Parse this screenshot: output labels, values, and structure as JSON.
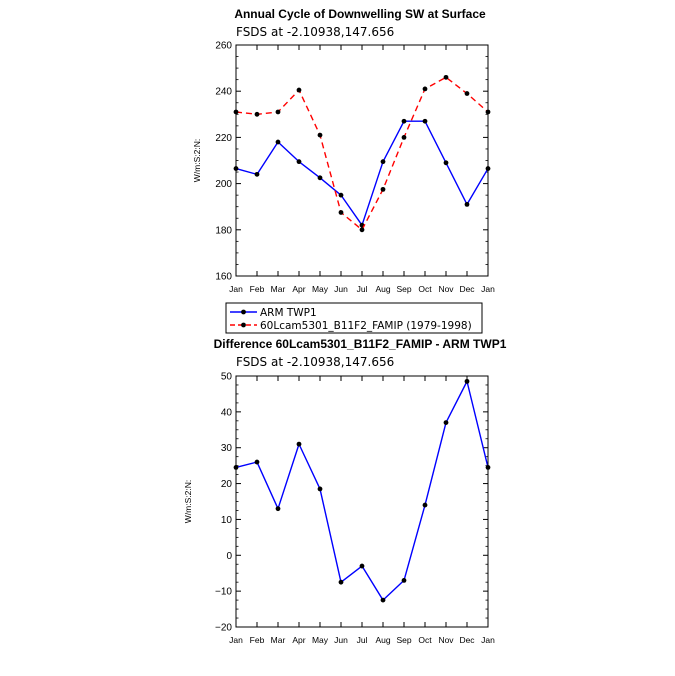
{
  "chart_data": [
    {
      "type": "line",
      "title": "Annual Cycle of Downwelling SW at Surface",
      "subtitle": "FSDS at -2.10938,147.656",
      "ylabel": "W/m:S:2:N:",
      "ylim": [
        160,
        260
      ],
      "yticks": [
        160,
        180,
        200,
        220,
        240,
        260
      ],
      "categories": [
        "Jan",
        "Feb",
        "Mar",
        "Apr",
        "May",
        "Jun",
        "Jul",
        "Aug",
        "Sep",
        "Oct",
        "Nov",
        "Dec",
        "Jan"
      ],
      "series": [
        {
          "name": "ARM TWP1",
          "color": "#0000ff",
          "dash": "",
          "values": [
            206.5,
            204,
            218,
            209.5,
            202.5,
            195,
            182,
            209.5,
            227,
            227,
            209,
            191,
            206.5
          ]
        },
        {
          "name": "60Lcam5301_B11F2_FAMIP (1979-1998)",
          "color": "#ff0000",
          "dash": "6,4",
          "values": [
            231,
            230,
            231,
            240.5,
            221,
            187.5,
            180,
            197.5,
            220,
            241,
            246,
            239,
            231
          ]
        }
      ],
      "legend_position": "below"
    },
    {
      "type": "line",
      "title": "Difference 60Lcam5301_B11F2_FAMIP - ARM TWP1",
      "subtitle": "FSDS at -2.10938,147.656",
      "ylabel": "W/m:S:2:N:",
      "ylim": [
        -20,
        50
      ],
      "yticks": [
        -20,
        -10,
        0,
        10,
        20,
        30,
        40,
        50
      ],
      "categories": [
        "Jan",
        "Feb",
        "Mar",
        "Apr",
        "May",
        "Jun",
        "Jul",
        "Aug",
        "Sep",
        "Oct",
        "Nov",
        "Dec",
        "Jan"
      ],
      "series": [
        {
          "color": "#0000ff",
          "dash": "",
          "values": [
            24.5,
            26,
            13,
            31,
            18.5,
            -7.5,
            -3,
            -12.5,
            -7,
            14,
            37,
            48.5,
            24.5
          ]
        }
      ]
    }
  ]
}
